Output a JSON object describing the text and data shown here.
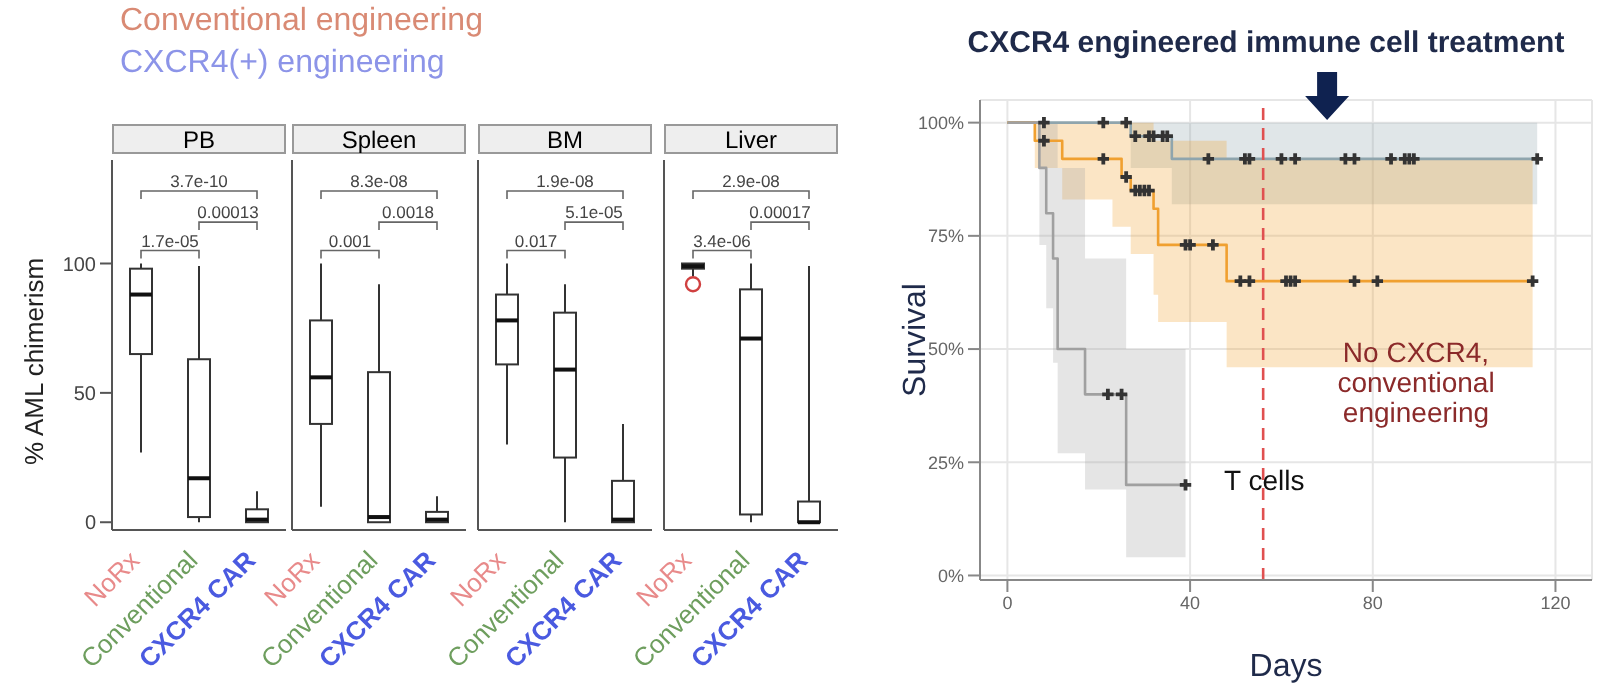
{
  "chart_data": [
    {
      "type": "box",
      "title": "PB",
      "ylabel": "% AML chimerism",
      "categories": [
        "NoRx",
        "Conventional",
        "CXCR4 CAR"
      ],
      "boxes": [
        {
          "low": 27,
          "q1": 65,
          "median": 88,
          "q3": 98,
          "high": 100
        },
        {
          "low": 0,
          "q1": 2,
          "median": 17,
          "q3": 63,
          "high": 99
        },
        {
          "low": 0,
          "q1": 0,
          "median": 1,
          "q3": 5,
          "high": 12
        }
      ],
      "ylim": [
        -3,
        140
      ],
      "yticks": [
        0,
        50,
        100
      ],
      "grid": false,
      "annotations": [
        "Conventional engineering",
        "CXCR4(+) engineering",
        "3.7e-10",
        "0.00013",
        "1.7e-05"
      ]
    },
    {
      "type": "box",
      "title": "Spleen",
      "categories": [
        "NoRx",
        "Conventional",
        "CXCR4 CAR"
      ],
      "boxes": [
        {
          "low": 6,
          "q1": 38,
          "median": 56,
          "q3": 78,
          "high": 100
        },
        {
          "low": 0,
          "q1": 0,
          "median": 2,
          "q3": 58,
          "high": 92
        },
        {
          "low": 0,
          "q1": 0,
          "median": 1,
          "q3": 4,
          "high": 10
        }
      ],
      "ylim": [
        -3,
        140
      ],
      "tick_labels": "x",
      "grid": false,
      "annotations": [
        "8.3e-08",
        "0.0018",
        "0.001"
      ]
    },
    {
      "type": "box",
      "title": "BM",
      "categories": [
        "NoRx",
        "Conventional",
        "CXCR4 CAR"
      ],
      "boxes": [
        {
          "low": 30,
          "q1": 61,
          "median": 78,
          "q3": 88,
          "high": 100
        },
        {
          "low": 0,
          "q1": 25,
          "median": 59,
          "q3": 81,
          "high": 92
        },
        {
          "low": 0,
          "q1": 0,
          "median": 1,
          "q3": 16,
          "high": 38
        }
      ],
      "ylim": [
        -3,
        140
      ],
      "tick_labels": "x",
      "grid": false,
      "annotations": [
        "1.9e-08",
        "5.1e-05",
        "0.017"
      ]
    },
    {
      "type": "box",
      "title": "Liver",
      "categories": [
        "NoRx",
        "Conventional",
        "CXCR4 CAR"
      ],
      "boxes": [
        {
          "low": 95,
          "q1": 98,
          "median": 99,
          "q3": 100,
          "high": 100,
          "mean": 92
        },
        {
          "low": 0,
          "q1": 3,
          "median": 71,
          "q3": 90,
          "high": 100
        },
        {
          "low": 0,
          "q1": 0,
          "median": 0,
          "q3": 8,
          "high": 99
        }
      ],
      "ylim": [
        -3,
        140
      ],
      "tick_labels": "x",
      "grid": false,
      "annotations": [
        "2.9e-08",
        "0.00017",
        "3.4e-06"
      ]
    },
    {
      "type": "step",
      "title": "CXCR4 engineered immune cell treatment",
      "xlabel": "Days",
      "ylabel": "Survival",
      "xlim": [
        -6,
        128
      ],
      "xticks": [
        0,
        40,
        80,
        120
      ],
      "ylim": [
        -1,
        105
      ],
      "yticks": [
        {
          "value": 0,
          "label": "0%"
        },
        {
          "value": 25,
          "label": "25%"
        },
        {
          "value": 50,
          "label": "50%"
        },
        {
          "value": 75,
          "label": "75%"
        },
        {
          "value": 100,
          "label": "100%"
        }
      ],
      "grid": true,
      "marker": "none",
      "legend": false,
      "series": [
        {
          "color": "#8fa5ad",
          "x": [
            0,
            27,
            36,
            116
          ],
          "values": [
            100,
            97,
            92,
            92
          ],
          "lower": [
            100,
            90,
            82,
            82
          ],
          "upper": [
            100,
            100,
            100,
            100
          ]
        },
        {
          "color": "#f0a030",
          "x": [
            0,
            6,
            12,
            23,
            25,
            27,
            32,
            33,
            48,
            115
          ],
          "values": [
            100,
            96,
            92,
            92,
            88,
            85,
            81,
            73,
            65,
            65
          ],
          "lower": [
            100,
            90,
            83,
            77,
            77,
            71,
            62,
            56,
            46,
            46
          ],
          "upper": [
            100,
            100,
            100,
            100,
            100,
            100,
            96,
            96,
            92,
            92
          ]
        },
        {
          "color": "#a0a0a0",
          "x": [
            0,
            7,
            8.5,
            10,
            11,
            17,
            26,
            39
          ],
          "values": [
            100,
            90,
            80,
            70,
            50,
            40,
            20,
            20
          ],
          "lower": [
            100,
            73,
            59,
            47,
            27,
            19,
            4,
            4
          ],
          "upper": [
            100,
            100,
            100,
            100,
            90,
            70,
            50,
            50
          ]
        },
        {
          "type": "scatter",
          "marker": "cross",
          "color": "#333333",
          "x": [
            8,
            21,
            26,
            28,
            31,
            32,
            34,
            35,
            44,
            52,
            53,
            60,
            63,
            74,
            76,
            84,
            87,
            88,
            89,
            116,
            8,
            21,
            26,
            28,
            29,
            30,
            31,
            39,
            40,
            45,
            51,
            53,
            61,
            62,
            63,
            76,
            81,
            115,
            22,
            25,
            39
          ],
          "values": [
            100,
            100,
            100,
            97,
            97,
            97,
            97,
            97,
            92,
            92,
            92,
            92,
            92,
            92,
            92,
            92,
            92,
            92,
            92,
            92,
            96,
            92,
            88,
            85,
            85,
            85,
            85,
            73,
            73,
            73,
            65,
            65,
            65,
            65,
            65,
            65,
            65,
            65,
            40,
            40,
            20
          ]
        }
      ],
      "ref_lines": [
        {
          "axis": "x",
          "value": 56,
          "color": "#e05050",
          "line_style": "dashed"
        }
      ],
      "annotations": [
        "No CXCR4, conventional engineering",
        "T cells"
      ]
    }
  ]
}
